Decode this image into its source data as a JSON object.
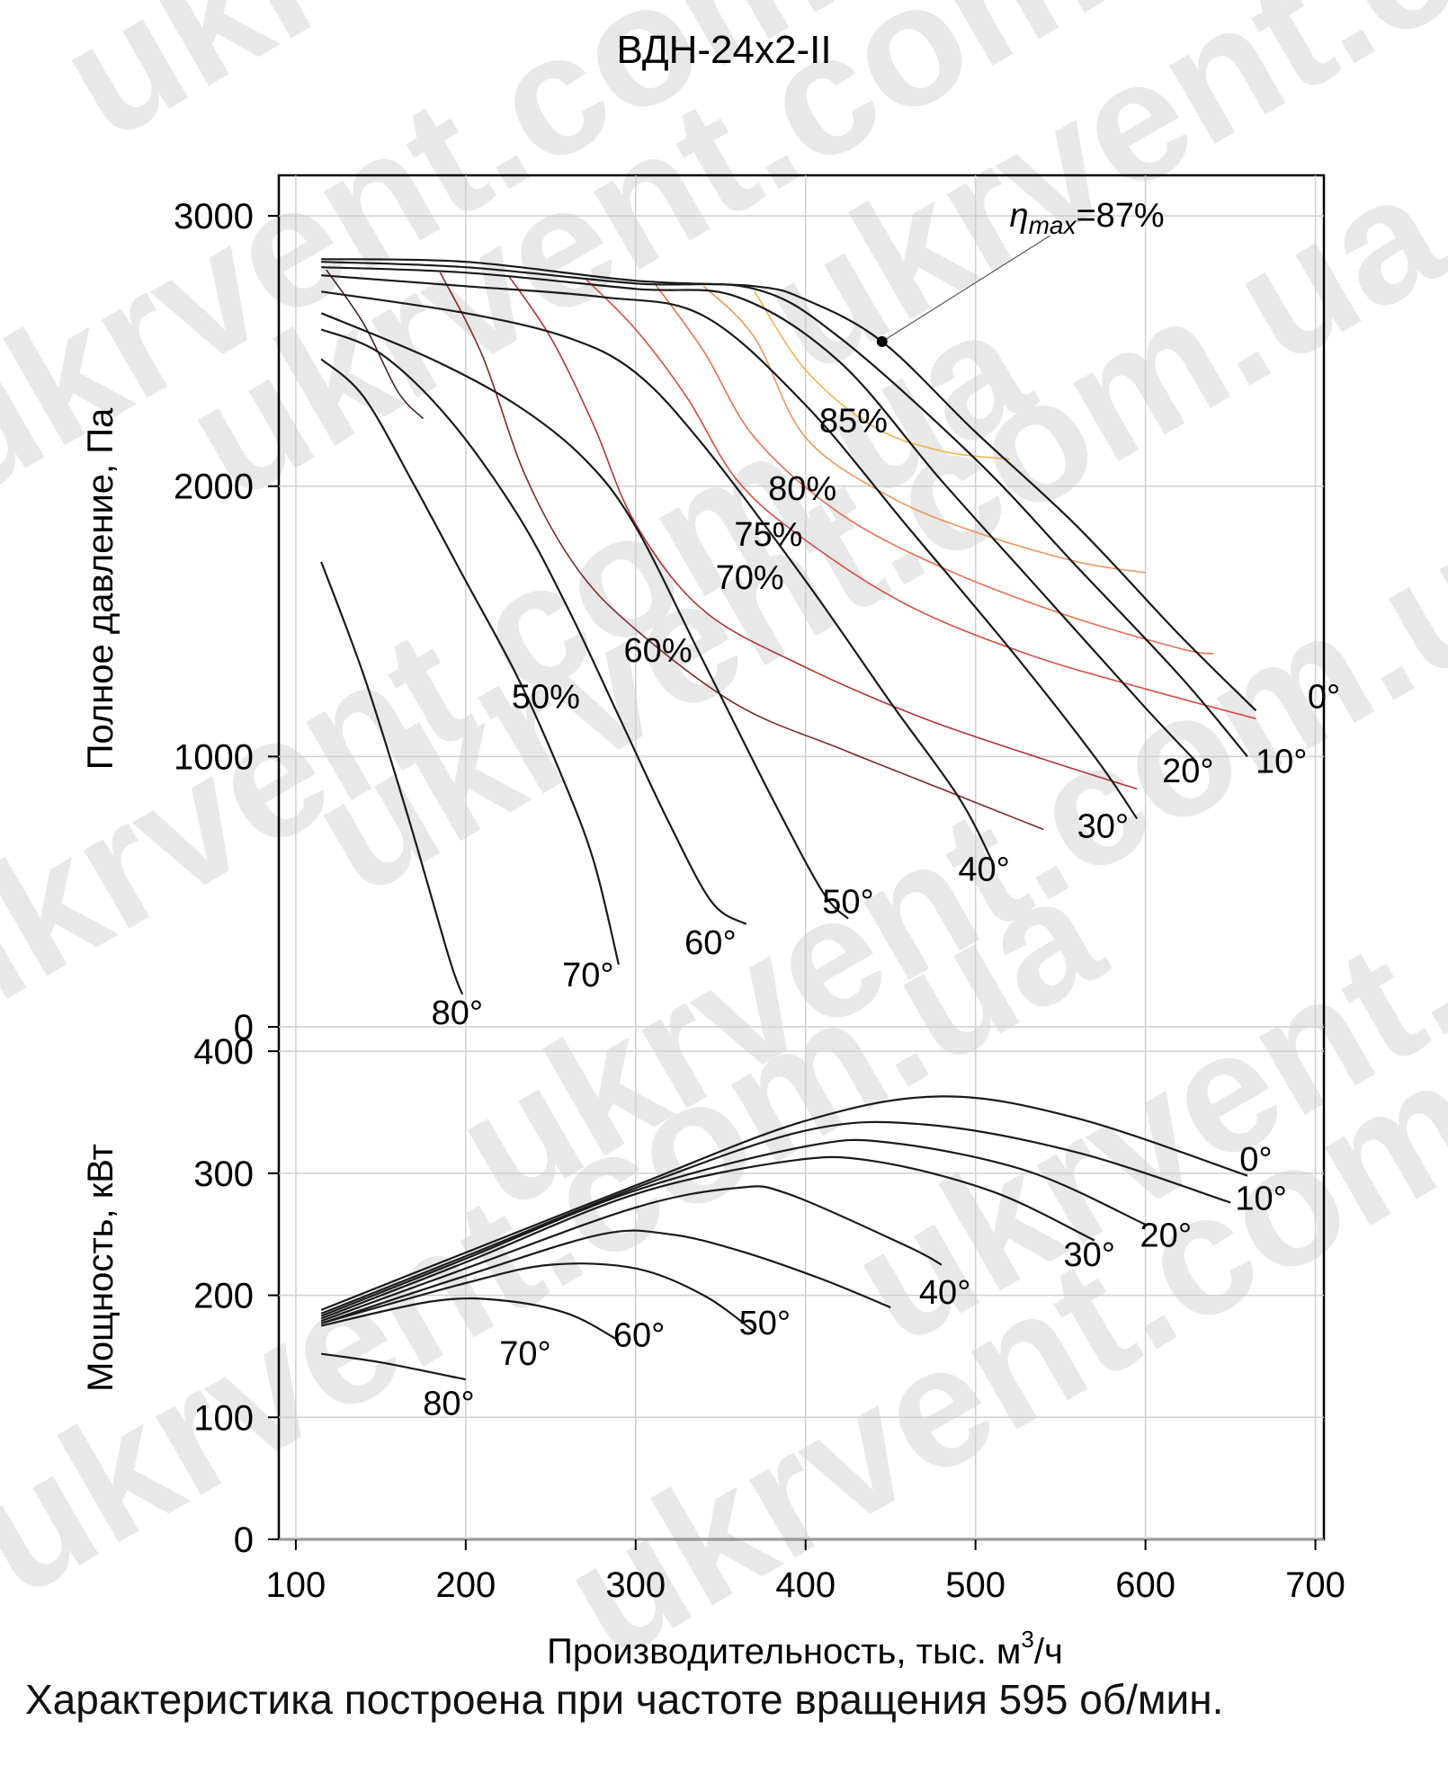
{
  "chart_data": [
    {
      "type": "line",
      "title": "ВДН-24х2-II",
      "ylabel": "Полное давление, Па",
      "xlim": [
        90,
        705
      ],
      "ylim": [
        0,
        3150
      ],
      "x_ticks": [
        "100",
        "200",
        "300",
        "400",
        "500",
        "600",
        "700"
      ],
      "y_ticks": [
        "0",
        "1000",
        "2000",
        "3000"
      ],
      "grid": true,
      "annotation": {
        "prefix": "η",
        "sub": "max",
        "suffix": "=87%",
        "point": [
          445,
          2535
        ],
        "text_at": [
          520,
          2960
        ]
      },
      "series": [
        {
          "name": "0°",
          "label_at": [
            705,
            1180
          ],
          "color": "#1a1a1a",
          "x": [
            115,
            200,
            300,
            370,
            400,
            445,
            500,
            560,
            620,
            665
          ],
          "y": [
            2840,
            2830,
            2760,
            2740,
            2690,
            2535,
            2200,
            1850,
            1450,
            1170
          ]
        },
        {
          "name": "10°",
          "label_at": [
            680,
            940
          ],
          "color": "#1a1a1a",
          "x": [
            115,
            200,
            300,
            370,
            420,
            500,
            560,
            620,
            660
          ],
          "y": [
            2830,
            2810,
            2750,
            2730,
            2550,
            2100,
            1700,
            1300,
            1000
          ]
        },
        {
          "name": "20°",
          "label_at": [
            625,
            905
          ],
          "color": "#1a1a1a",
          "x": [
            115,
            200,
            300,
            360,
            420,
            480,
            540,
            600,
            630
          ],
          "y": [
            2810,
            2790,
            2730,
            2700,
            2460,
            2020,
            1600,
            1180,
            980
          ]
        },
        {
          "name": "30°",
          "label_at": [
            575,
            700
          ],
          "color": "#1a1a1a",
          "x": [
            115,
            200,
            280,
            340,
            400,
            460,
            520,
            570,
            595
          ],
          "y": [
            2780,
            2740,
            2700,
            2630,
            2300,
            1850,
            1400,
            1000,
            770
          ]
        },
        {
          "name": "40°",
          "label_at": [
            505,
            540
          ],
          "color": "#1a1a1a",
          "x": [
            115,
            200,
            260,
            300,
            340,
            400,
            450,
            490,
            510
          ],
          "y": [
            2720,
            2640,
            2550,
            2420,
            2150,
            1650,
            1200,
            850,
            610
          ]
        },
        {
          "name": "50°",
          "label_at": [
            425,
            420
          ],
          "color": "#1a1a1a",
          "x": [
            115,
            180,
            230,
            270,
            300,
            340,
            380,
            410,
            425
          ],
          "y": [
            2640,
            2470,
            2300,
            2100,
            1850,
            1350,
            850,
            500,
            400
          ]
        },
        {
          "name": "60°",
          "label_at": [
            344,
            270
          ],
          "color": "#1a1a1a",
          "x": [
            115,
            150,
            190,
            230,
            260,
            290,
            320,
            345,
            365
          ],
          "y": [
            2580,
            2490,
            2250,
            1900,
            1550,
            1150,
            750,
            460,
            380
          ]
        },
        {
          "name": "70°",
          "label_at": [
            272,
            150
          ],
          "color": "#1a1a1a",
          "x": [
            115,
            140,
            170,
            200,
            230,
            255,
            275,
            290
          ],
          "y": [
            2470,
            2330,
            2000,
            1650,
            1300,
            950,
            620,
            230
          ]
        },
        {
          "name": "80°",
          "label_at": [
            195,
            10
          ],
          "color": "#1a1a1a",
          "x": [
            115,
            140,
            165,
            190,
            198
          ],
          "y": [
            1720,
            1300,
            800,
            260,
            120
          ]
        }
      ],
      "efficiency_curves": [
        {
          "name": "85%",
          "label_at": [
            408,
            2200
          ],
          "color": "#f1b24a",
          "x": [
            370,
            400,
            440,
            480,
            520
          ],
          "y": [
            2720,
            2430,
            2220,
            2130,
            2100
          ]
        },
        {
          "name": "80%",
          "label_at": [
            378,
            1950
          ],
          "color": "#f0945a",
          "x": [
            340,
            370,
            400,
            450,
            500,
            560,
            600
          ],
          "y": [
            2740,
            2550,
            2180,
            1960,
            1830,
            1720,
            1680
          ]
        },
        {
          "name": "75%",
          "label_at": [
            358,
            1780
          ],
          "color": "#e97050",
          "x": [
            310,
            340,
            370,
            420,
            480,
            550,
            620,
            640
          ],
          "y": [
            2760,
            2500,
            2180,
            1900,
            1700,
            1530,
            1400,
            1380
          ]
        },
        {
          "name": "70%",
          "label_at": [
            347,
            1620
          ],
          "color": "#d84e3e",
          "x": [
            270,
            300,
            330,
            360,
            400,
            460,
            530,
            600,
            665
          ],
          "y": [
            2770,
            2580,
            2330,
            2020,
            1800,
            1560,
            1380,
            1250,
            1140
          ]
        },
        {
          "name": "60%",
          "label_at": [
            293,
            1350
          ],
          "color": "#b23530",
          "x": [
            225,
            250,
            275,
            300,
            340,
            400,
            470,
            540,
            595
          ],
          "y": [
            2780,
            2550,
            2230,
            1860,
            1540,
            1330,
            1140,
            990,
            880
          ]
        },
        {
          "name": "50%",
          "label_at": [
            227,
            1180
          ],
          "color": "#7d2a28",
          "x": [
            185,
            210,
            235,
            265,
            300,
            360,
            420,
            480,
            540
          ],
          "y": [
            2790,
            2480,
            2040,
            1700,
            1470,
            1190,
            1030,
            880,
            730
          ]
        },
        {
          "name": "",
          "color": "#4a2220",
          "x": [
            118,
            140,
            160,
            175
          ],
          "y": [
            2800,
            2600,
            2350,
            2250
          ]
        }
      ]
    },
    {
      "type": "line",
      "ylabel": "Мощность, кВт",
      "xlabel_main": "Производительность, тыс. м",
      "xlabel_sup": "3",
      "xlabel_tail": "/ч",
      "xlim": [
        90,
        705
      ],
      "ylim": [
        0,
        420
      ],
      "y_ticks": [
        "0",
        "100",
        "200",
        "300",
        "400"
      ],
      "grid": true,
      "series": [
        {
          "name": "0°",
          "label_at": [
            665,
            302
          ],
          "x": [
            115,
            200,
            300,
            400,
            480,
            560,
            660
          ],
          "y": [
            188,
            235,
            290,
            343,
            363,
            345,
            298
          ]
        },
        {
          "name": "10°",
          "label_at": [
            668,
            270
          ],
          "x": [
            115,
            200,
            300,
            400,
            470,
            560,
            650
          ],
          "y": [
            185,
            232,
            288,
            335,
            340,
            317,
            276
          ]
        },
        {
          "name": "20°",
          "label_at": [
            612,
            240
          ],
          "x": [
            115,
            200,
            300,
            400,
            450,
            530,
            600
          ],
          "y": [
            183,
            230,
            286,
            322,
            325,
            302,
            258
          ]
        },
        {
          "name": "30°",
          "label_at": [
            567,
            224
          ],
          "x": [
            115,
            200,
            300,
            390,
            440,
            510,
            570
          ],
          "y": [
            181,
            227,
            283,
            310,
            310,
            285,
            245
          ]
        },
        {
          "name": "40°",
          "label_at": [
            482,
            193
          ],
          "x": [
            115,
            200,
            300,
            360,
            390,
            460,
            480
          ],
          "y": [
            179,
            222,
            272,
            288,
            283,
            240,
            225
          ]
        },
        {
          "name": "50°",
          "label_at": [
            376,
            168
          ],
          "x": [
            115,
            200,
            280,
            320,
            360,
            410,
            450
          ],
          "y": [
            177,
            216,
            250,
            250,
            237,
            213,
            190
          ]
        },
        {
          "name": "60°",
          "label_at": [
            302,
            158
          ],
          "x": [
            115,
            200,
            250,
            300,
            340,
            370
          ],
          "y": [
            177,
            210,
            225,
            222,
            200,
            170
          ]
        },
        {
          "name": "70°",
          "label_at": [
            235,
            143
          ],
          "x": [
            115,
            180,
            220,
            260,
            290
          ],
          "y": [
            175,
            195,
            196,
            185,
            163
          ]
        },
        {
          "name": "80°",
          "label_at": [
            190,
            102
          ],
          "x": [
            115,
            150,
            200
          ],
          "y": [
            152,
            145,
            131
          ]
        }
      ]
    }
  ],
  "watermark": "ukrvent.com.ua",
  "caption": "Характеристика построена при частоте вращения 595 об/мин."
}
